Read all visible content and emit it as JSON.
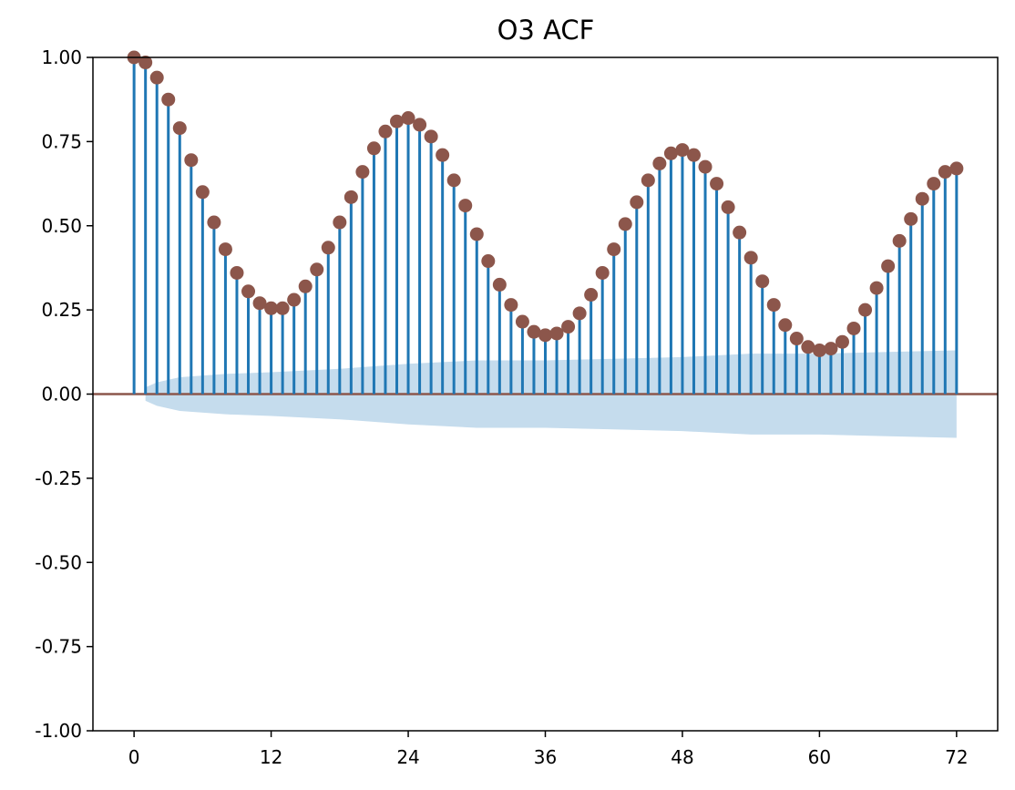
{
  "chart_data": {
    "type": "stem",
    "title": "O3 ACF",
    "xlabel": "",
    "ylabel": "",
    "xlim": [
      -3.6,
      75.6
    ],
    "ylim": [
      -1.0,
      1.0
    ],
    "xticks": [
      0,
      12,
      24,
      36,
      48,
      60,
      72
    ],
    "xtick_labels": [
      "0",
      "12",
      "24",
      "36",
      "48",
      "60",
      "72"
    ],
    "yticks": [
      1.0,
      0.75,
      0.5,
      0.25,
      0.0,
      -0.25,
      -0.5,
      -0.75,
      -1.0
    ],
    "ytick_labels": [
      "1.00",
      "0.75",
      "0.50",
      "0.25",
      "0.00",
      "-0.25",
      "-0.50",
      "-0.75",
      "-1.00"
    ],
    "grid": false,
    "lags": [
      0,
      1,
      2,
      3,
      4,
      5,
      6,
      7,
      8,
      9,
      10,
      11,
      12,
      13,
      14,
      15,
      16,
      17,
      18,
      19,
      20,
      21,
      22,
      23,
      24,
      25,
      26,
      27,
      28,
      29,
      30,
      31,
      32,
      33,
      34,
      35,
      36,
      37,
      38,
      39,
      40,
      41,
      42,
      43,
      44,
      45,
      46,
      47,
      48,
      49,
      50,
      51,
      52,
      53,
      54,
      55,
      56,
      57,
      58,
      59,
      60,
      61,
      62,
      63,
      64,
      65,
      66,
      67,
      68,
      69,
      70,
      71,
      72
    ],
    "acf": [
      1.0,
      0.985,
      0.94,
      0.875,
      0.79,
      0.695,
      0.6,
      0.51,
      0.43,
      0.36,
      0.305,
      0.27,
      0.255,
      0.255,
      0.28,
      0.32,
      0.37,
      0.435,
      0.51,
      0.585,
      0.66,
      0.73,
      0.78,
      0.81,
      0.82,
      0.8,
      0.765,
      0.71,
      0.635,
      0.56,
      0.475,
      0.395,
      0.325,
      0.265,
      0.215,
      0.185,
      0.175,
      0.18,
      0.2,
      0.24,
      0.295,
      0.36,
      0.43,
      0.505,
      0.57,
      0.635,
      0.685,
      0.715,
      0.725,
      0.71,
      0.675,
      0.625,
      0.555,
      0.48,
      0.405,
      0.335,
      0.265,
      0.205,
      0.165,
      0.14,
      0.13,
      0.135,
      0.155,
      0.195,
      0.25,
      0.315,
      0.38,
      0.455,
      0.52,
      0.58,
      0.625,
      0.66,
      0.67
    ],
    "confidence_band": {
      "lags": [
        1,
        2,
        4,
        8,
        12,
        18,
        24,
        30,
        36,
        42,
        48,
        54,
        60,
        66,
        72
      ],
      "upper": [
        0.02,
        0.035,
        0.05,
        0.06,
        0.065,
        0.075,
        0.09,
        0.1,
        0.1,
        0.105,
        0.11,
        0.12,
        0.12,
        0.125,
        0.13
      ],
      "lower": [
        -0.02,
        -0.035,
        -0.05,
        -0.06,
        -0.065,
        -0.075,
        -0.09,
        -0.1,
        -0.1,
        -0.105,
        -0.11,
        -0.12,
        -0.12,
        -0.125,
        -0.13
      ]
    },
    "colors": {
      "stem": "#1f77b4",
      "marker": "#8c564b",
      "baseline": "#8c564b",
      "band": "#c5dced"
    }
  }
}
